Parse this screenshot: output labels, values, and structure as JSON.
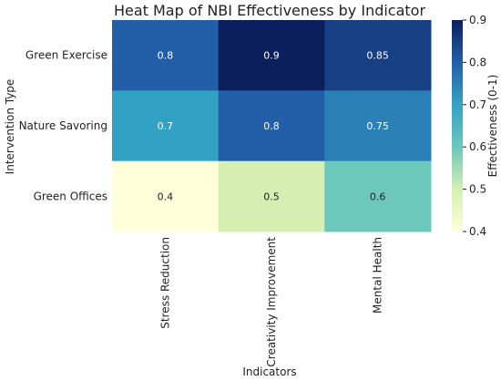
{
  "chart_data": {
    "type": "heatmap",
    "title": "Heat Map of NBI Effectiveness by Indicator",
    "xlabel": "Indicators",
    "ylabel": "Intervention Type",
    "x_categories": [
      "Stress Reduction",
      "Creativity Improvement",
      "Mental Health"
    ],
    "y_categories": [
      "Green Exercise",
      "Nature Savoring",
      "Green Offices"
    ],
    "values": [
      [
        0.8,
        0.9,
        0.85
      ],
      [
        0.7,
        0.8,
        0.75
      ],
      [
        0.4,
        0.5,
        0.6
      ]
    ],
    "value_labels": [
      [
        "0.8",
        "0.9",
        "0.85"
      ],
      [
        "0.7",
        "0.8",
        "0.75"
      ],
      [
        "0.4",
        "0.5",
        "0.6"
      ]
    ],
    "colorbar": {
      "label": "Effectiveness (0-1)",
      "range": [
        0.4,
        0.9
      ],
      "ticks": [
        "0.4",
        "0.5",
        "0.6",
        "0.7",
        "0.8",
        "0.9"
      ],
      "colormap": "YlGnBu"
    }
  }
}
